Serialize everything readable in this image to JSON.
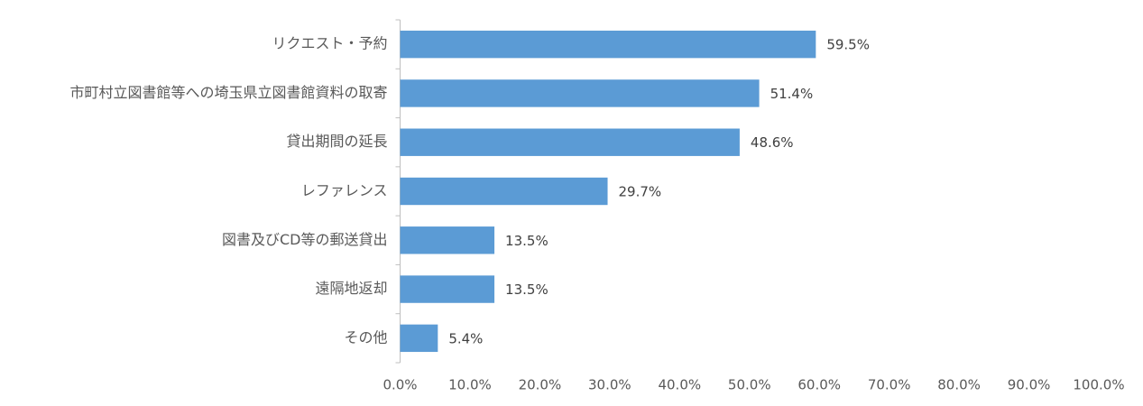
{
  "chart_data": {
    "type": "barh",
    "categories": [
      "リクエスト・予約",
      "市町村立図書館等への埼玉県立図書館資料の取寄",
      "貸出期間の延長",
      "レファレンス",
      "図書及びCD等の郵送貸出",
      "遠隔地返却",
      "その他"
    ],
    "values": [
      59.5,
      51.4,
      48.6,
      29.7,
      13.5,
      13.5,
      5.4
    ],
    "value_labels": [
      "59.5%",
      "51.4%",
      "48.6%",
      "29.7%",
      "13.5%",
      "13.5%",
      "5.4%"
    ],
    "color": "#5b9bd5",
    "xlim": [
      0,
      100
    ],
    "xticks": [
      {
        "value": 0,
        "label": "0.0%"
      },
      {
        "value": 10,
        "label": "10.0%"
      },
      {
        "value": 20,
        "label": "20.0%"
      },
      {
        "value": 30,
        "label": "30.0%"
      },
      {
        "value": 40,
        "label": "40.0%"
      },
      {
        "value": 50,
        "label": "50.0%"
      },
      {
        "value": 60,
        "label": "60.0%"
      },
      {
        "value": 70,
        "label": "70.0%"
      },
      {
        "value": 80,
        "label": "80.0%"
      },
      {
        "value": 90,
        "label": "90.0%"
      },
      {
        "value": 100,
        "label": "100.0%"
      }
    ],
    "grid": false
  }
}
